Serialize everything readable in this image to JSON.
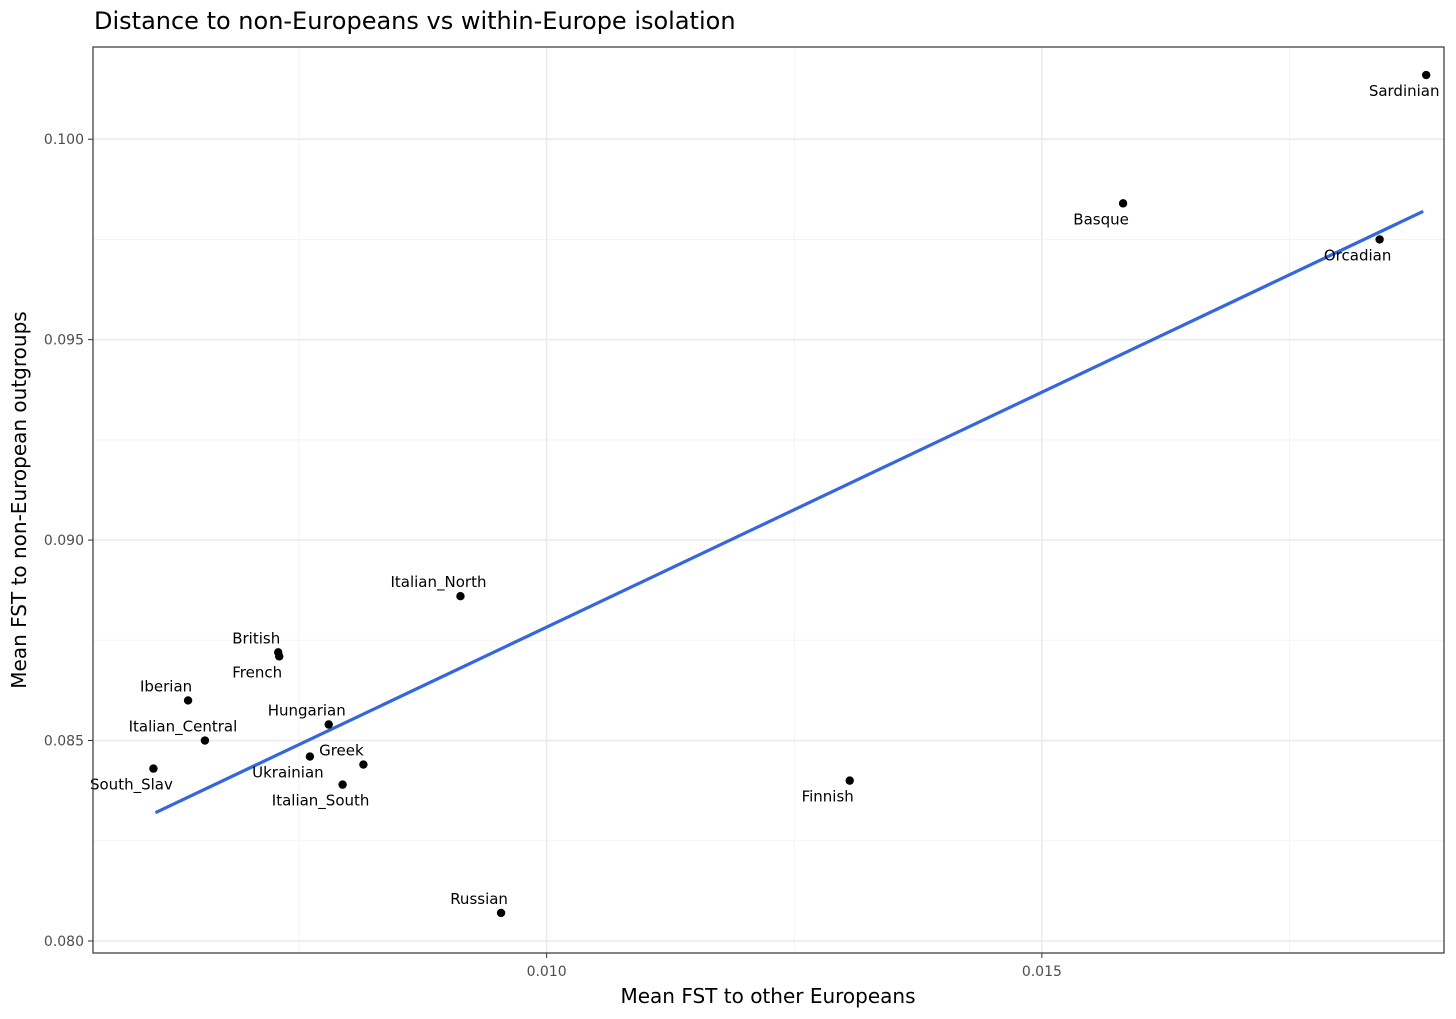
{
  "chart_data": {
    "type": "scatter",
    "title": "Distance to non-Europeans vs within-Europe isolation",
    "xlabel": "Mean FST to other Europeans",
    "ylabel": "Mean FST to non-European outgroups",
    "xlim": [
      0.00542,
      0.01906
    ],
    "ylim": [
      0.0797,
      0.1023
    ],
    "x_ticks": [
      {
        "value": 0.01,
        "label": "0.010"
      },
      {
        "value": 0.015,
        "label": "0.015"
      }
    ],
    "y_ticks": [
      {
        "value": 0.08,
        "label": "0.080"
      },
      {
        "value": 0.085,
        "label": "0.085"
      },
      {
        "value": 0.09,
        "label": "0.090"
      },
      {
        "value": 0.095,
        "label": "0.095"
      },
      {
        "value": 0.1,
        "label": "0.100"
      }
    ],
    "grid": true,
    "points": [
      {
        "name": "Sardinian",
        "x": 0.01888,
        "y": 0.1016,
        "label_pos": "below"
      },
      {
        "name": "Basque",
        "x": 0.01582,
        "y": 0.0984,
        "label_pos": "below"
      },
      {
        "name": "Orcadian",
        "x": 0.01841,
        "y": 0.0975,
        "label_pos": "below"
      },
      {
        "name": "Italian_North",
        "x": 0.00913,
        "y": 0.0886,
        "label_pos": "above"
      },
      {
        "name": "British",
        "x": 0.00729,
        "y": 0.0872,
        "label_pos": "above"
      },
      {
        "name": "French",
        "x": 0.0073,
        "y": 0.0871,
        "label_pos": "below"
      },
      {
        "name": "Iberian",
        "x": 0.00638,
        "y": 0.086,
        "label_pos": "above"
      },
      {
        "name": "Hungarian",
        "x": 0.0078,
        "y": 0.0854,
        "label_pos": "above"
      },
      {
        "name": "Italian_Central",
        "x": 0.00655,
        "y": 0.085,
        "label_pos": "above"
      },
      {
        "name": "Ukrainian",
        "x": 0.00761,
        "y": 0.0846,
        "label_pos": "below"
      },
      {
        "name": "Greek",
        "x": 0.00815,
        "y": 0.0844,
        "label_pos": "above"
      },
      {
        "name": "South_Slav",
        "x": 0.00603,
        "y": 0.0843,
        "label_pos": "below"
      },
      {
        "name": "Italian_South",
        "x": 0.00794,
        "y": 0.0839,
        "label_pos": "below"
      },
      {
        "name": "Finnish",
        "x": 0.01306,
        "y": 0.084,
        "label_pos": "below"
      },
      {
        "name": "Russian",
        "x": 0.00954,
        "y": 0.0807,
        "label_pos": "above"
      }
    ],
    "fit_line": {
      "x": [
        0.00605,
        0.01885
      ],
      "y": [
        0.0832,
        0.0982
      ],
      "color": "#3366e6"
    },
    "point_color": "#000000"
  }
}
